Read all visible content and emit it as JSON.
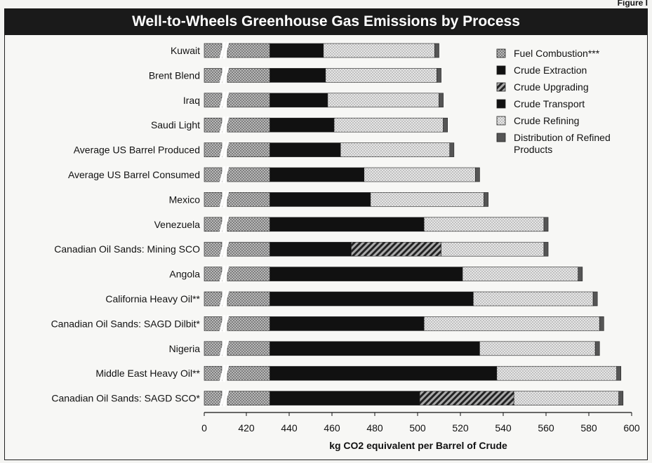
{
  "figure_label": "Figure I",
  "chart_data": {
    "type": "bar",
    "orientation": "horizontal",
    "stacked": true,
    "title": "Well-to-Wheels Greenhouse Gas Emissions by Process",
    "xlabel": "kg CO2 equivalent per Barrel of Crude",
    "xlim": [
      400,
      600
    ],
    "axis_break": true,
    "x_ticks": [
      "0",
      "420",
      "440",
      "460",
      "480",
      "500",
      "520",
      "540",
      "560",
      "580",
      "600"
    ],
    "legend_position": "top-right",
    "categories": [
      "Kuwait",
      "Brent Blend",
      "Iraq",
      "Saudi Light",
      "Average US Barrel Produced",
      "Average US Barrel Consumed",
      "Mexico",
      "Venezuela",
      "Canadian Oil Sands: Mining SCO",
      "Angola",
      "California Heavy Oil**",
      "Canadian Oil Sands: SAGD Dilbit*",
      "Nigeria",
      "Middle East Heavy Oil**",
      "Canadian Oil Sands: SAGD SCO*"
    ],
    "series": [
      {
        "name": "Fuel Combustion***",
        "color": "#9a9a9a",
        "pattern": "dots",
        "values": [
          431,
          431,
          431,
          431,
          431,
          431,
          431,
          431,
          431,
          431,
          431,
          431,
          431,
          431,
          431
        ]
      },
      {
        "name": "Crude Extraction",
        "color": "#111111",
        "pattern": "solid",
        "values": [
          25,
          26,
          27,
          30,
          33,
          44,
          47,
          72,
          38,
          90,
          95,
          72,
          98,
          106,
          70
        ]
      },
      {
        "name": "Crude Upgrading",
        "color": "#333333",
        "pattern": "hatch",
        "values": [
          0,
          0,
          0,
          0,
          0,
          0,
          0,
          0,
          42,
          0,
          0,
          0,
          0,
          0,
          44
        ]
      },
      {
        "name": "Crude Transport",
        "color": "#111111",
        "pattern": "solid",
        "values": [
          0,
          0,
          0,
          0,
          0,
          0,
          0,
          0,
          0,
          0,
          0,
          0,
          0,
          0,
          0
        ]
      },
      {
        "name": "Crude Refining",
        "color": "#cfcfcf",
        "pattern": "light-dots",
        "values": [
          52,
          52,
          52,
          51,
          51,
          52,
          53,
          56,
          48,
          54,
          56,
          82,
          54,
          56,
          49
        ]
      },
      {
        "name": "Distribution of Refined Products",
        "color": "#555555",
        "pattern": "solid",
        "values": [
          2,
          2,
          2,
          2,
          2,
          2,
          2,
          2,
          2,
          2,
          2,
          2,
          2,
          2,
          2
        ]
      }
    ]
  }
}
